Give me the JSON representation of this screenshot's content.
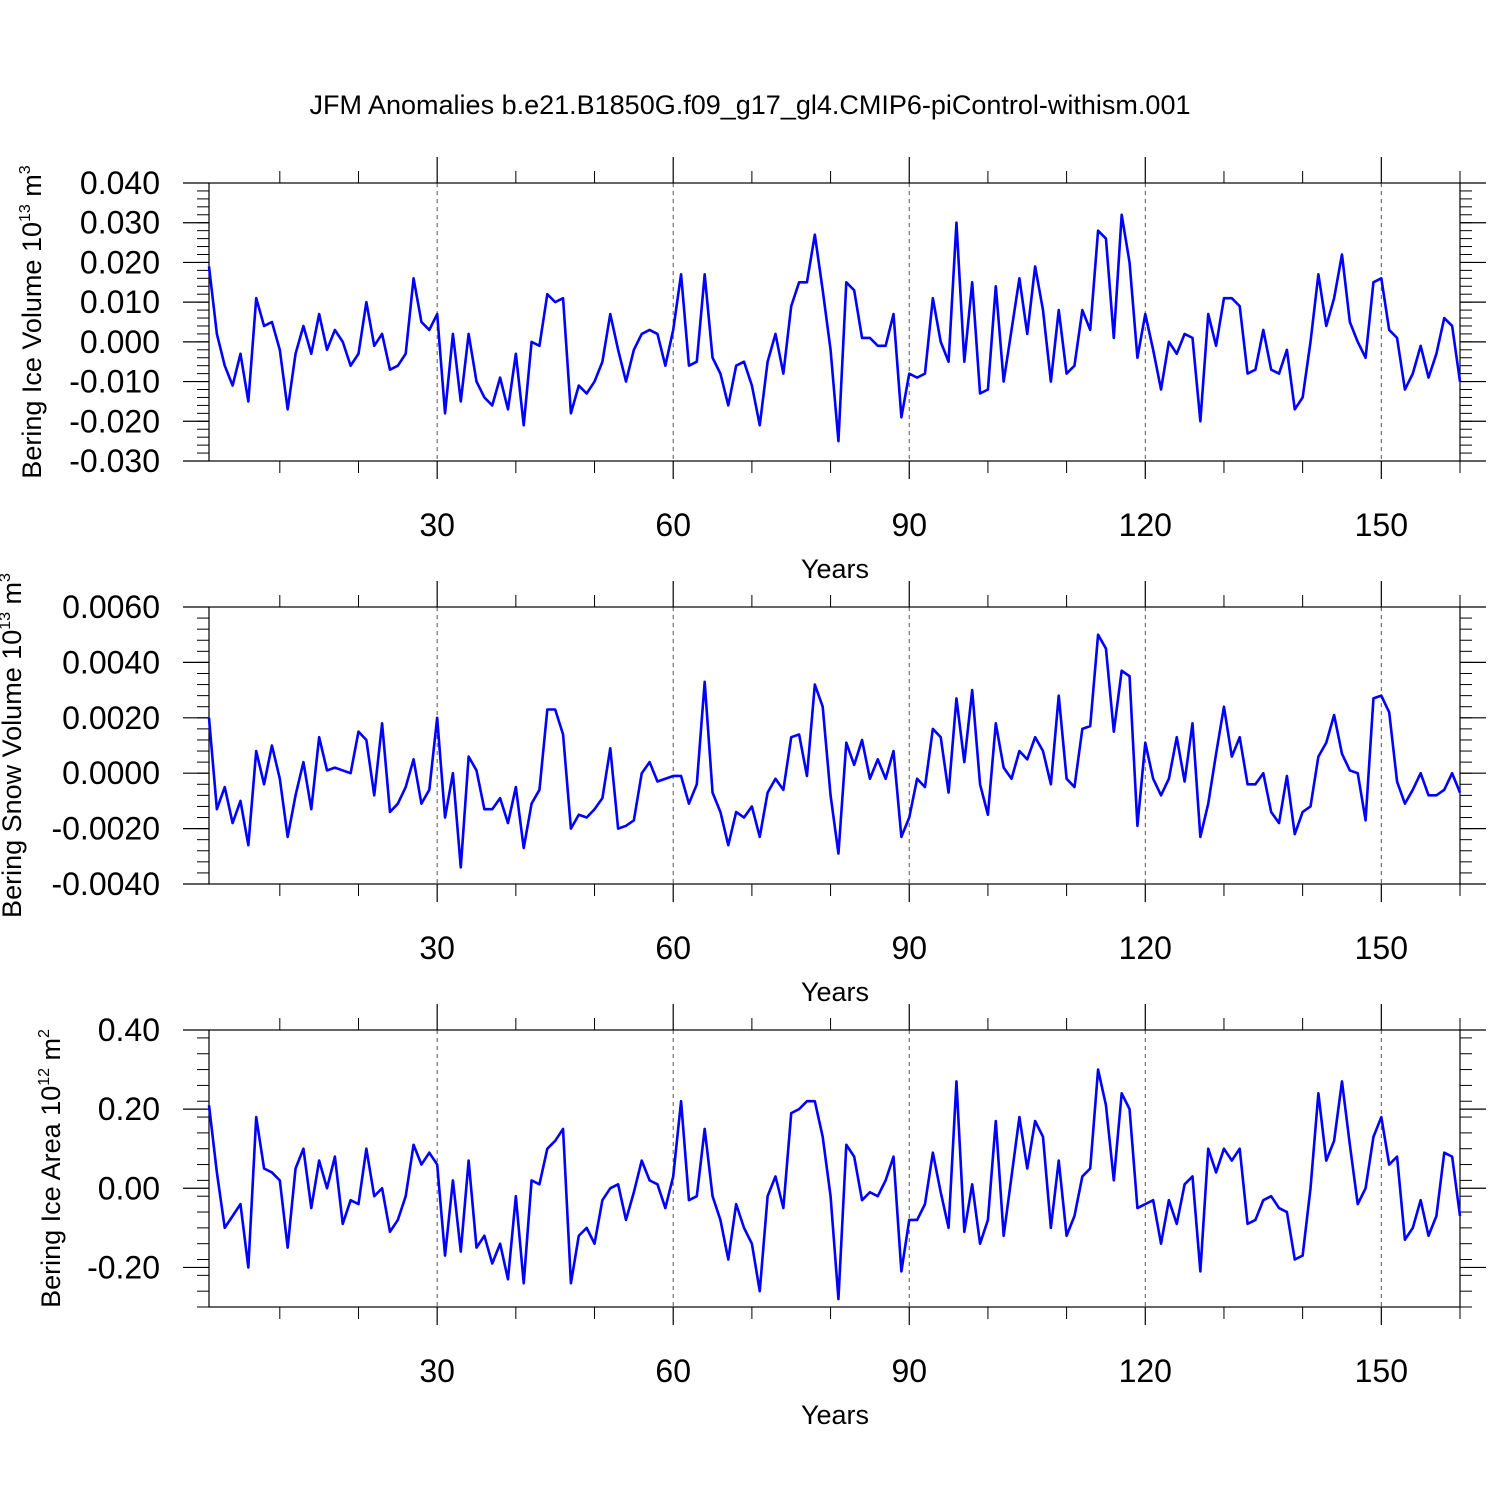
{
  "title": "JFM Anomalies b.e21.B1850G.f09_g17_gl4.CMIP6-piControl-withism.001",
  "colors": {
    "line": "#0000ff",
    "axis": "#000000",
    "grid": "#555555"
  },
  "chart_data": [
    {
      "type": "line",
      "ylabel": {
        "text": "Bering Ice Volume 10",
        "sup": "13",
        "unit": " m",
        "unit_sup": "3"
      },
      "xlabel": "Years",
      "xlim": [
        1,
        160
      ],
      "ylim": [
        -0.03,
        0.04
      ],
      "yticks": [
        "0.040",
        "0.030",
        "0.020",
        "0.010",
        "0.000",
        "-0.010",
        "-0.020",
        "-0.030"
      ],
      "ytick_values": [
        0.04,
        0.03,
        0.02,
        0.01,
        0.0,
        -0.01,
        -0.02,
        -0.03
      ],
      "xticks": [
        "30",
        "60",
        "90",
        "120",
        "150"
      ],
      "xtick_values": [
        30,
        60,
        90,
        120,
        150
      ],
      "grid": "vertical dashed at major x ticks",
      "series": [
        {
          "values": [
            0.019,
            0.002,
            -0.006,
            -0.011,
            -0.003,
            -0.015,
            0.011,
            0.004,
            0.005,
            -0.002,
            -0.017,
            -0.003,
            0.004,
            -0.003,
            0.007,
            -0.002,
            0.003,
            -0.0,
            -0.006,
            -0.003,
            0.01,
            -0.001,
            0.002,
            -0.007,
            -0.006,
            -0.003,
            0.016,
            0.005,
            0.003,
            0.007,
            -0.018,
            0.002,
            -0.015,
            0.002,
            -0.01,
            -0.014,
            -0.016,
            -0.009,
            -0.017,
            -0.003,
            -0.021,
            -0.0,
            -0.001,
            0.012,
            0.01,
            0.011,
            -0.018,
            -0.011,
            -0.013,
            -0.01,
            -0.005,
            0.007,
            -0.002,
            -0.01,
            -0.002,
            0.002,
            0.003,
            0.002,
            -0.006,
            0.003,
            0.017,
            -0.006,
            -0.005,
            0.017,
            -0.004,
            -0.008,
            -0.016,
            -0.006,
            -0.005,
            -0.011,
            -0.021,
            -0.005,
            0.002,
            -0.008,
            0.009,
            0.015,
            0.015,
            0.027,
            0.013,
            -0.002,
            -0.025,
            0.015,
            0.013,
            0.001,
            0.001,
            -0.001,
            -0.001,
            0.007,
            -0.019,
            -0.008,
            -0.009,
            -0.008,
            0.011,
            0.0,
            -0.005,
            0.03,
            -0.005,
            0.015,
            -0.013,
            -0.012,
            0.014,
            -0.01,
            0.003,
            0.016,
            0.002,
            0.019,
            0.008,
            -0.01,
            0.008,
            -0.008,
            -0.006,
            0.008,
            0.003,
            0.028,
            0.026,
            0.001,
            0.032,
            0.02,
            -0.004,
            0.007,
            -0.002,
            -0.012,
            0.0,
            -0.003,
            0.002,
            0.001,
            -0.02,
            0.007,
            -0.001,
            0.011,
            0.011,
            0.009,
            -0.008,
            -0.007,
            0.003,
            -0.007,
            -0.008,
            -0.002,
            -0.017,
            -0.014,
            -0.0,
            0.017,
            0.004,
            0.011,
            0.022,
            0.005,
            -0.0,
            -0.004,
            0.015,
            0.016,
            0.003,
            0.001,
            -0.012,
            -0.008,
            -0.001,
            -0.009,
            -0.003,
            0.006,
            0.004,
            -0.01
          ]
        }
      ]
    },
    {
      "type": "line",
      "ylabel": {
        "text": "Bering Snow Volume 10",
        "sup": "13",
        "unit": " m",
        "unit_sup": "3"
      },
      "xlabel": "Years",
      "xlim": [
        1,
        160
      ],
      "ylim": [
        -0.004,
        0.006
      ],
      "yticks": [
        "0.0060",
        "0.0040",
        "0.0020",
        "0.0000",
        "-0.0020",
        "-0.0040"
      ],
      "ytick_values": [
        0.006,
        0.004,
        0.002,
        0.0,
        -0.002,
        -0.004
      ],
      "xticks": [
        "30",
        "60",
        "90",
        "120",
        "150"
      ],
      "xtick_values": [
        30,
        60,
        90,
        120,
        150
      ],
      "grid": "vertical dashed at major x ticks",
      "series": [
        {
          "values": [
            0.002,
            -0.0013,
            -0.0005,
            -0.0018,
            -0.001,
            -0.0026,
            0.0008,
            -0.0004,
            0.001,
            -0.0002,
            -0.0023,
            -0.0008,
            0.0004,
            -0.0013,
            0.0013,
            0.0001,
            0.0002,
            0.0001,
            0.0,
            0.0015,
            0.0012,
            -0.0008,
            0.0018,
            -0.0014,
            -0.0011,
            -0.0005,
            0.0005,
            -0.0011,
            -0.0006,
            0.002,
            -0.0016,
            0.0,
            -0.0034,
            0.0006,
            0.0001,
            -0.0013,
            -0.0013,
            -0.0009,
            -0.0018,
            -0.0005,
            -0.0027,
            -0.0011,
            -0.0006,
            0.0023,
            0.0023,
            0.0014,
            -0.002,
            -0.0015,
            -0.0016,
            -0.0013,
            -0.0009,
            0.0009,
            -0.002,
            -0.0019,
            -0.0017,
            0.0,
            0.0004,
            -0.0003,
            -0.0002,
            -0.0001,
            -0.0001,
            -0.0011,
            -0.0004,
            0.0033,
            -0.0007,
            -0.0014,
            -0.0026,
            -0.0014,
            -0.0016,
            -0.0012,
            -0.0023,
            -0.0007,
            -0.0002,
            -0.0006,
            0.0013,
            0.0014,
            -0.0001,
            0.0032,
            0.0024,
            -0.0008,
            -0.0029,
            0.0011,
            0.0003,
            0.0012,
            -0.0002,
            0.0005,
            -0.0002,
            0.0008,
            -0.0023,
            -0.0016,
            -0.0002,
            -0.0005,
            0.0016,
            0.0013,
            -0.0007,
            0.0027,
            0.0004,
            0.003,
            -0.0004,
            -0.0015,
            0.0018,
            0.0002,
            -0.0002,
            0.0008,
            0.0005,
            0.0013,
            0.0008,
            -0.0004,
            0.0028,
            -0.0002,
            -0.0005,
            0.0016,
            0.0017,
            0.005,
            0.0045,
            0.0015,
            0.0037,
            0.0035,
            -0.0019,
            0.0011,
            -0.0002,
            -0.0008,
            -0.0002,
            0.0013,
            -0.0003,
            0.0018,
            -0.0023,
            -0.0011,
            0.0007,
            0.0024,
            0.0006,
            0.0013,
            -0.0004,
            -0.0004,
            0.0,
            -0.0014,
            -0.0018,
            -0.0001,
            -0.0022,
            -0.0014,
            -0.0012,
            0.0006,
            0.0011,
            0.0021,
            0.0007,
            0.0001,
            -0.0,
            -0.0017,
            0.0027,
            0.0028,
            0.0022,
            -0.0003,
            -0.0011,
            -0.0006,
            -0.0,
            -0.0008,
            -0.0008,
            -0.0006,
            0.0,
            -0.0007
          ]
        }
      ]
    },
    {
      "type": "line",
      "ylabel": {
        "text": "Bering Ice Area 10",
        "sup": "12",
        "unit": " m",
        "unit_sup": "2"
      },
      "xlabel": "Years",
      "xlim": [
        1,
        160
      ],
      "ylim": [
        -0.3,
        0.4
      ],
      "yticks": [
        "0.40",
        "0.20",
        "0.00",
        "-0.20"
      ],
      "ytick_values": [
        0.4,
        0.2,
        0.0,
        -0.2
      ],
      "xticks": [
        "30",
        "60",
        "90",
        "120",
        "150"
      ],
      "xtick_values": [
        30,
        60,
        90,
        120,
        150
      ],
      "grid": "vertical dashed at major x ticks",
      "series": [
        {
          "values": [
            0.21,
            0.04,
            -0.1,
            -0.07,
            -0.04,
            -0.2,
            0.18,
            0.05,
            0.04,
            0.02,
            -0.15,
            0.05,
            0.1,
            -0.05,
            0.07,
            0.0,
            0.08,
            -0.09,
            -0.03,
            -0.04,
            0.1,
            -0.02,
            -0.0,
            -0.11,
            -0.08,
            -0.02,
            0.11,
            0.06,
            0.09,
            0.06,
            -0.17,
            0.02,
            -0.16,
            0.07,
            -0.15,
            -0.12,
            -0.19,
            -0.14,
            -0.23,
            -0.02,
            -0.24,
            0.02,
            0.01,
            0.1,
            0.12,
            0.15,
            -0.24,
            -0.12,
            -0.1,
            -0.14,
            -0.03,
            -0.0,
            0.01,
            -0.08,
            -0.01,
            0.07,
            0.02,
            0.01,
            -0.05,
            0.03,
            0.22,
            -0.03,
            -0.02,
            0.15,
            -0.02,
            -0.08,
            -0.18,
            -0.04,
            -0.1,
            -0.14,
            -0.26,
            -0.02,
            0.03,
            -0.05,
            0.19,
            0.2,
            0.22,
            0.22,
            0.13,
            -0.02,
            -0.28,
            0.11,
            0.08,
            -0.03,
            -0.01,
            -0.02,
            0.02,
            0.08,
            -0.21,
            -0.08,
            -0.08,
            -0.04,
            0.09,
            -0.01,
            -0.1,
            0.27,
            -0.11,
            0.01,
            -0.14,
            -0.08,
            0.17,
            -0.12,
            0.03,
            0.18,
            0.05,
            0.17,
            0.13,
            -0.1,
            0.07,
            -0.12,
            -0.07,
            0.03,
            0.05,
            0.3,
            0.21,
            0.02,
            0.24,
            0.2,
            -0.05,
            -0.04,
            -0.03,
            -0.14,
            -0.03,
            -0.09,
            0.01,
            0.03,
            -0.21,
            0.1,
            0.04,
            0.1,
            0.07,
            0.1,
            -0.09,
            -0.08,
            -0.03,
            -0.02,
            -0.05,
            -0.06,
            -0.18,
            -0.17,
            0.0,
            0.24,
            0.07,
            0.12,
            0.27,
            0.11,
            -0.04,
            0.0,
            0.13,
            0.18,
            0.06,
            0.08,
            -0.13,
            -0.1,
            -0.03,
            -0.12,
            -0.07,
            0.09,
            0.08,
            -0.07
          ]
        }
      ]
    }
  ]
}
